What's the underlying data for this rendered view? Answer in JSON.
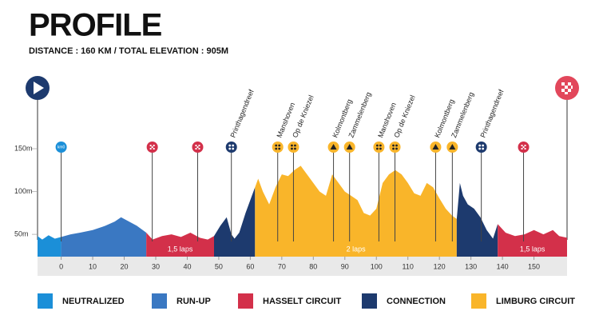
{
  "chart_data": {
    "type": "area",
    "title": "PROFILE",
    "subtitle": "DISTANCE : 160 KM / TOTAL ELEVATION : 905M",
    "xlim": [
      -7.5,
      160.5
    ],
    "xticks": [
      0,
      10,
      20,
      30,
      40,
      50,
      60,
      70,
      80,
      90,
      100,
      110,
      120,
      130,
      140,
      150
    ],
    "ylim": [
      24,
      150
    ],
    "yticks": [
      {
        "value": 50,
        "label": "50m"
      },
      {
        "value": 100,
        "label": "100m"
      },
      {
        "value": 150,
        "label": "150m"
      }
    ],
    "series": [
      {
        "name": "NEUTRALIZED",
        "color": "#1b8fd8",
        "x": [
          -7.5,
          -6,
          -4,
          -2,
          0
        ],
        "values": [
          48,
          44,
          49,
          45,
          47
        ]
      },
      {
        "name": "RUN-UP",
        "color": "#3a78c2",
        "x": [
          0,
          3,
          6,
          10,
          14,
          17,
          19,
          21,
          24,
          27
        ],
        "values": [
          47,
          50,
          52,
          55,
          60,
          65,
          70,
          66,
          60,
          52
        ]
      },
      {
        "name": "HASSELT CIRCUIT",
        "color": "#d3304a",
        "label": "1,5 laps",
        "x": [
          27,
          29,
          32,
          35,
          38,
          41,
          44,
          46.5,
          48.5
        ],
        "values": [
          52,
          44,
          48,
          50,
          47,
          52,
          46,
          44,
          48
        ]
      },
      {
        "name": "CONNECTION",
        "color": "#1d3a6e",
        "x": [
          48.5,
          50.5,
          52.5,
          54,
          55,
          56.5,
          58.5,
          60.5,
          61.5
        ],
        "values": [
          48,
          60,
          70,
          50,
          45,
          52,
          75,
          95,
          105
        ]
      },
      {
        "name": "LIMBURG CIRCUIT",
        "color": "#f9b52a",
        "label": "2 laps",
        "x": [
          61.5,
          62.5,
          64,
          66,
          68,
          70,
          72,
          74,
          76,
          78,
          80,
          82,
          84,
          86,
          88,
          90,
          92,
          94,
          96,
          98,
          100,
          102,
          104,
          106,
          108,
          110,
          112,
          114,
          116,
          118,
          120,
          122,
          124,
          125.5
        ],
        "values": [
          105,
          115,
          100,
          85,
          105,
          120,
          118,
          125,
          130,
          120,
          110,
          100,
          95,
          120,
          110,
          100,
          95,
          90,
          75,
          72,
          80,
          110,
          120,
          125,
          120,
          110,
          98,
          95,
          110,
          105,
          92,
          80,
          72,
          68
        ]
      },
      {
        "name": "CONNECTION",
        "color": "#1d3a6e",
        "x": [
          125.5,
          126.5,
          127.5,
          129,
          131,
          133,
          135,
          137,
          138.5
        ],
        "values": [
          68,
          110,
          95,
          85,
          80,
          70,
          55,
          45,
          62
        ]
      },
      {
        "name": "HASSELT CIRCUIT",
        "color": "#d3304a",
        "label": "1,5 laps",
        "x": [
          138.5,
          141,
          144,
          147,
          150,
          153,
          156,
          158,
          160.5
        ],
        "values": [
          62,
          52,
          48,
          50,
          55,
          50,
          55,
          48,
          46
        ]
      }
    ],
    "waypoints": [
      {
        "km": 0,
        "name": "km0",
        "icon": "km",
        "color": "#1b8fd8"
      },
      {
        "km": 28.9,
        "icon": "sprint",
        "color": "#d3304a"
      },
      {
        "km": 43.3,
        "icon": "sprint",
        "color": "#d3304a"
      },
      {
        "km": 54,
        "name": "Printhagendreef",
        "icon": "cobbles",
        "color": "#1d3a6e"
      },
      {
        "km": 68.7,
        "name": "Manshoven",
        "icon": "cobbles",
        "color": "#f9b52a"
      },
      {
        "km": 73.7,
        "name": "Op de Kniezel",
        "icon": "cobbles",
        "color": "#f9b52a"
      },
      {
        "km": 86.4,
        "name": "Kolmontberg",
        "icon": "climb",
        "color": "#f9b52a"
      },
      {
        "km": 91.5,
        "name": "Zammelenberg",
        "icon": "climb",
        "color": "#f9b52a"
      },
      {
        "km": 100.8,
        "name": "Manshoven",
        "icon": "cobbles",
        "color": "#f9b52a"
      },
      {
        "km": 105.9,
        "name": "Op de Kniezel",
        "icon": "cobbles",
        "color": "#f9b52a"
      },
      {
        "km": 118.8,
        "name": "Kolmontberg",
        "icon": "climb",
        "color": "#f9b52a"
      },
      {
        "km": 124.1,
        "name": "Zammelenberg",
        "icon": "climb",
        "color": "#f9b52a"
      },
      {
        "km": 133.3,
        "name": "Printhagendreef",
        "icon": "cobbles",
        "color": "#1d3a6e"
      },
      {
        "km": 146.7,
        "icon": "sprint",
        "color": "#d3304a"
      }
    ]
  }
}
